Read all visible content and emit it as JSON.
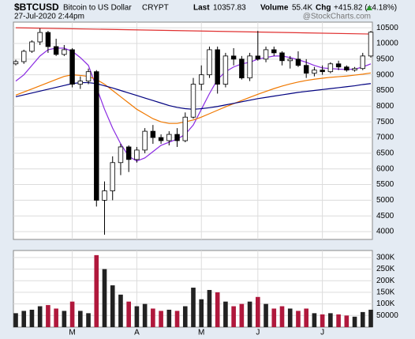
{
  "chart_data": [
    {
      "type": "candlestick",
      "title": "$BTCUSD",
      "subtitle": "Bitcoin to US Dollar",
      "exchange": "CRYPT",
      "date": "27-Jul-2020 2:44pm",
      "watermark": "@StockCharts.com",
      "stats": [
        {
          "label": "Last",
          "value": "10357.83"
        },
        {
          "label": "Volume",
          "value": "55.4K"
        },
        {
          "label": "Chg",
          "value": "+415.82 (+4.18%)"
        }
      ],
      "categories": [
        null,
        null,
        null,
        null,
        null,
        null,
        null,
        "M",
        null,
        null,
        null,
        null,
        null,
        null,
        null,
        "A",
        null,
        null,
        null,
        null,
        null,
        null,
        null,
        "M",
        null,
        null,
        null,
        null,
        null,
        null,
        "J",
        null,
        null,
        null,
        null,
        null,
        null,
        null,
        "J",
        null,
        null,
        null,
        null,
        null,
        null
      ],
      "open": [
        9350,
        9420,
        9750,
        10050,
        10350,
        9900,
        9650,
        9800,
        8700,
        8800,
        9100,
        5000,
        5300,
        6200,
        6700,
        6300,
        6600,
        7200,
        7000,
        6900,
        7100,
        6900,
        7650,
        8700,
        9000,
        9800,
        8700,
        9600,
        9500,
        8900,
        9600,
        9500,
        9800,
        9700,
        9450,
        9500,
        9300,
        9050,
        9150,
        9100,
        9350,
        9250,
        9150,
        9200,
        9600
      ],
      "high": [
        9480,
        9800,
        10100,
        10480,
        10400,
        10150,
        9950,
        9850,
        8950,
        9200,
        9150,
        5600,
        6400,
        6800,
        6750,
        6700,
        7300,
        7400,
        7100,
        7200,
        7300,
        7800,
        8900,
        9300,
        9900,
        9900,
        9700,
        9850,
        9600,
        9700,
        10400,
        9900,
        9900,
        9750,
        9600,
        9750,
        9500,
        9250,
        9300,
        9400,
        9450,
        9300,
        9250,
        9700,
        10400
      ],
      "low": [
        9300,
        9350,
        9700,
        9950,
        9700,
        9600,
        9600,
        8600,
        8550,
        8700,
        4800,
        3900,
        5000,
        5800,
        5900,
        6200,
        6500,
        6800,
        6800,
        6750,
        6700,
        6850,
        7600,
        8500,
        8900,
        8400,
        8600,
        9300,
        8850,
        8800,
        9450,
        9400,
        9600,
        9300,
        9200,
        9250,
        8900,
        8950,
        9000,
        9050,
        9150,
        9100,
        9100,
        9150,
        9550
      ],
      "close": [
        9420,
        9750,
        10050,
        10350,
        9900,
        9650,
        9800,
        8700,
        8800,
        9100,
        5000,
        5300,
        6200,
        6700,
        6300,
        6600,
        7200,
        7000,
        6900,
        7100,
        6900,
        7650,
        8700,
        9000,
        9800,
        8700,
        9600,
        9500,
        8900,
        9600,
        9500,
        9800,
        9700,
        9450,
        9500,
        9300,
        9050,
        9150,
        9100,
        9350,
        9250,
        9150,
        9200,
        9600,
        10358
      ],
      "series": [
        {
          "color": "#8a2be2",
          "values": [
            8800,
            9000,
            9300,
            9600,
            9800,
            9850,
            9850,
            9750,
            9550,
            9300,
            8600,
            7900,
            7300,
            6800,
            6400,
            6250,
            6350,
            6550,
            6750,
            6850,
            6950,
            7100,
            7400,
            7900,
            8400,
            8850,
            9100,
            9250,
            9350,
            9400,
            9500,
            9550,
            9600,
            9600,
            9550,
            9480,
            9400,
            9300,
            9220,
            9200,
            9180,
            9170,
            9180,
            9250,
            9350
          ]
        },
        {
          "color": "#f07800",
          "values": [
            8350,
            8450,
            8550,
            8650,
            8750,
            8850,
            8950,
            9000,
            8980,
            8950,
            8850,
            8700,
            8500,
            8300,
            8100,
            7900,
            7750,
            7600,
            7500,
            7450,
            7450,
            7500,
            7560,
            7650,
            7760,
            7870,
            7980,
            8080,
            8180,
            8280,
            8380,
            8470,
            8560,
            8640,
            8710,
            8770,
            8820,
            8860,
            8890,
            8920,
            8940,
            8960,
            8990,
            9020,
            9060
          ]
        },
        {
          "color": "#000080",
          "values": [
            8300,
            8360,
            8420,
            8480,
            8540,
            8600,
            8660,
            8720,
            8750,
            8750,
            8720,
            8650,
            8580,
            8500,
            8420,
            8340,
            8260,
            8180,
            8100,
            8020,
            7960,
            7920,
            7900,
            7920,
            7950,
            7990,
            8040,
            8090,
            8140,
            8190,
            8240,
            8280,
            8320,
            8360,
            8400,
            8440,
            8470,
            8500,
            8530,
            8560,
            8590,
            8620,
            8650,
            8690,
            8720
          ]
        }
      ],
      "trendline": {
        "color": "#e03030",
        "values": [
          10500,
          10300
        ]
      },
      "up_color": "#ffffff",
      "down_color": "#000000",
      "ylim": [
        3750,
        10680
      ],
      "yticks": [
        4000,
        4500,
        5000,
        5500,
        6000,
        6500,
        7000,
        7500,
        8000,
        8500,
        9000,
        9500,
        10000,
        10500
      ],
      "grid": true
    },
    {
      "type": "bar",
      "values": [
        60000,
        70000,
        75000,
        90000,
        95000,
        80000,
        70000,
        110000,
        70000,
        60000,
        310000,
        250000,
        180000,
        140000,
        110000,
        90000,
        100000,
        80000,
        70000,
        75000,
        70000,
        90000,
        170000,
        120000,
        160000,
        150000,
        110000,
        90000,
        100000,
        110000,
        130000,
        100000,
        80000,
        90000,
        80000,
        70000,
        80000,
        60000,
        55000,
        60000,
        55000,
        50000,
        45000,
        65000,
        75000
      ],
      "up_color": "#222222",
      "down_color": "#b0183c",
      "ylim": [
        0,
        330000
      ],
      "yticks": [
        50000,
        {
          "value": 100000,
          "label": "100K"
        },
        {
          "value": 150000,
          "label": "150K"
        },
        {
          "value": 200000,
          "label": "200K"
        },
        {
          "value": 250000,
          "label": "250K"
        },
        {
          "value": 300000,
          "label": "300K"
        }
      ],
      "grid": true
    }
  ]
}
